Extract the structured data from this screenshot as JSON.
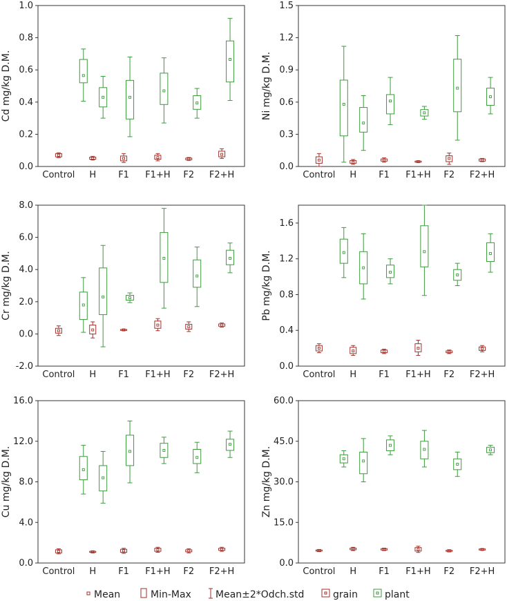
{
  "colors": {
    "grain": "#a0302a",
    "plant": "#3a9a3a",
    "axis": "#333333"
  },
  "legend": {
    "mean": "Mean",
    "minmax": "Min-Max",
    "std": "Mean±2*Odch.std",
    "grain": "grain",
    "plant": "plant"
  },
  "chart_data": [
    {
      "type": "box",
      "ylabel": "Cd mg/kg D.M.",
      "categories": [
        "Control",
        "H",
        "F1",
        "F1+H",
        "F2",
        "F2+H"
      ],
      "yticks": [
        "0.0",
        "0.2",
        "0.4",
        "0.6",
        "0.8",
        "1.0"
      ],
      "ylim": [
        0,
        1.0
      ],
      "series": [
        {
          "name": "grain",
          "boxes": [
            {
              "mean": 0.07,
              "min": 0.06,
              "max": 0.08,
              "lo": 0.055,
              "hi": 0.085
            },
            {
              "mean": 0.05,
              "min": 0.045,
              "max": 0.058,
              "lo": 0.04,
              "hi": 0.063
            },
            {
              "mean": 0.05,
              "min": 0.035,
              "max": 0.065,
              "lo": 0.025,
              "hi": 0.08
            },
            {
              "mean": 0.055,
              "min": 0.045,
              "max": 0.07,
              "lo": 0.035,
              "hi": 0.08
            },
            {
              "mean": 0.047,
              "min": 0.042,
              "max": 0.052,
              "lo": 0.038,
              "hi": 0.056
            },
            {
              "mean": 0.075,
              "min": 0.06,
              "max": 0.095,
              "lo": 0.05,
              "hi": 0.11
            }
          ]
        },
        {
          "name": "plant",
          "boxes": [
            {
              "mean": 0.565,
              "min": 0.52,
              "max": 0.665,
              "lo": 0.405,
              "hi": 0.73
            },
            {
              "mean": 0.43,
              "min": 0.37,
              "max": 0.49,
              "lo": 0.3,
              "hi": 0.56
            },
            {
              "mean": 0.43,
              "min": 0.295,
              "max": 0.535,
              "lo": 0.185,
              "hi": 0.68
            },
            {
              "mean": 0.47,
              "min": 0.385,
              "max": 0.58,
              "lo": 0.27,
              "hi": 0.675
            },
            {
              "mean": 0.395,
              "min": 0.355,
              "max": 0.44,
              "lo": 0.3,
              "hi": 0.485
            },
            {
              "mean": 0.665,
              "min": 0.525,
              "max": 0.78,
              "lo": 0.41,
              "hi": 0.92
            }
          ]
        }
      ]
    },
    {
      "type": "box",
      "ylabel": "Ni mg/kg D.M.",
      "categories": [
        "Control",
        "H",
        "F1",
        "F1+H",
        "F2",
        "F2+H"
      ],
      "yticks": [
        "0.0",
        "0.3",
        "0.6",
        "0.9",
        "1.2",
        "1.5"
      ],
      "ylim": [
        0,
        1.5
      ],
      "series": [
        {
          "name": "grain",
          "boxes": [
            {
              "mean": 0.06,
              "min": 0.03,
              "max": 0.09,
              "lo": 0.0,
              "hi": 0.12
            },
            {
              "mean": 0.04,
              "min": 0.03,
              "max": 0.055,
              "lo": 0.02,
              "hi": 0.065
            },
            {
              "mean": 0.06,
              "min": 0.05,
              "max": 0.07,
              "lo": 0.04,
              "hi": 0.08
            },
            {
              "mean": 0.045,
              "min": 0.04,
              "max": 0.05,
              "lo": 0.037,
              "hi": 0.053
            },
            {
              "mean": 0.075,
              "min": 0.045,
              "max": 0.1,
              "lo": 0.02,
              "hi": 0.125
            },
            {
              "mean": 0.06,
              "min": 0.05,
              "max": 0.07,
              "lo": 0.045,
              "hi": 0.075
            }
          ]
        },
        {
          "name": "plant",
          "boxes": [
            {
              "mean": 0.58,
              "min": 0.285,
              "max": 0.805,
              "lo": 0.04,
              "hi": 1.12
            },
            {
              "mean": 0.405,
              "min": 0.32,
              "max": 0.55,
              "lo": 0.15,
              "hi": 0.66
            },
            {
              "mean": 0.61,
              "min": 0.49,
              "max": 0.67,
              "lo": 0.39,
              "hi": 0.83
            },
            {
              "mean": 0.5,
              "min": 0.47,
              "max": 0.53,
              "lo": 0.44,
              "hi": 0.56
            },
            {
              "mean": 0.73,
              "min": 0.51,
              "max": 1.0,
              "lo": 0.245,
              "hi": 1.22
            },
            {
              "mean": 0.65,
              "min": 0.57,
              "max": 0.73,
              "lo": 0.49,
              "hi": 0.83
            }
          ]
        }
      ]
    },
    {
      "type": "box",
      "ylabel": "Cr mg/kg D.M.",
      "categories": [
        "Control",
        "H",
        "F1",
        "F1+H",
        "F2",
        "F2+H"
      ],
      "yticks": [
        "-2.0",
        "0.0",
        "2.0",
        "4.0",
        "6.0",
        "8.0"
      ],
      "ylim": [
        -2,
        8
      ],
      "series": [
        {
          "name": "grain",
          "boxes": [
            {
              "mean": 0.2,
              "min": 0.05,
              "max": 0.35,
              "lo": -0.1,
              "hi": 0.5
            },
            {
              "mean": 0.25,
              "min": 0.0,
              "max": 0.55,
              "lo": -0.25,
              "hi": 0.75
            },
            {
              "mean": 0.25,
              "min": 0.22,
              "max": 0.28,
              "lo": 0.2,
              "hi": 0.3
            },
            {
              "mean": 0.55,
              "min": 0.35,
              "max": 0.8,
              "lo": 0.2,
              "hi": 0.95
            },
            {
              "mean": 0.45,
              "min": 0.3,
              "max": 0.6,
              "lo": 0.15,
              "hi": 0.75
            },
            {
              "mean": 0.55,
              "min": 0.48,
              "max": 0.62,
              "lo": 0.42,
              "hi": 0.68
            }
          ]
        },
        {
          "name": "plant",
          "boxes": [
            {
              "mean": 1.8,
              "min": 0.9,
              "max": 2.6,
              "lo": 0.1,
              "hi": 3.5
            },
            {
              "mean": 2.3,
              "min": 1.2,
              "max": 4.1,
              "lo": -0.8,
              "hi": 5.5
            },
            {
              "mean": 2.25,
              "min": 2.1,
              "max": 2.4,
              "lo": 1.95,
              "hi": 2.55
            },
            {
              "mean": 4.7,
              "min": 3.2,
              "max": 6.3,
              "lo": 1.6,
              "hi": 7.8
            },
            {
              "mean": 3.6,
              "min": 2.9,
              "max": 4.6,
              "lo": 1.7,
              "hi": 5.4
            },
            {
              "mean": 4.7,
              "min": 4.3,
              "max": 5.2,
              "lo": 3.8,
              "hi": 5.65
            }
          ]
        }
      ]
    },
    {
      "type": "box",
      "ylabel": "Pb mg/kg D.M.",
      "categories": [
        "Control",
        "H",
        "F1",
        "F1+H",
        "F2",
        "F2+H"
      ],
      "yticks": [
        "0.0",
        "0.4",
        "0.8",
        "1.2",
        "1.6"
      ],
      "ylim": [
        0,
        1.8
      ],
      "series": [
        {
          "name": "grain",
          "boxes": [
            {
              "mean": 0.2,
              "min": 0.17,
              "max": 0.23,
              "lo": 0.15,
              "hi": 0.25
            },
            {
              "mean": 0.17,
              "min": 0.14,
              "max": 0.21,
              "lo": 0.12,
              "hi": 0.23
            },
            {
              "mean": 0.165,
              "min": 0.15,
              "max": 0.18,
              "lo": 0.14,
              "hi": 0.19
            },
            {
              "mean": 0.2,
              "min": 0.16,
              "max": 0.25,
              "lo": 0.12,
              "hi": 0.29
            },
            {
              "mean": 0.16,
              "min": 0.15,
              "max": 0.17,
              "lo": 0.14,
              "hi": 0.18
            },
            {
              "mean": 0.195,
              "min": 0.175,
              "max": 0.215,
              "lo": 0.16,
              "hi": 0.23
            }
          ]
        },
        {
          "name": "plant",
          "boxes": [
            {
              "mean": 1.27,
              "min": 1.15,
              "max": 1.42,
              "lo": 0.99,
              "hi": 1.55
            },
            {
              "mean": 1.1,
              "min": 0.92,
              "max": 1.28,
              "lo": 0.75,
              "hi": 1.48
            },
            {
              "mean": 1.05,
              "min": 0.99,
              "max": 1.13,
              "lo": 0.92,
              "hi": 1.2
            },
            {
              "mean": 1.28,
              "min": 1.11,
              "max": 1.57,
              "lo": 0.79,
              "hi": 1.8
            },
            {
              "mean": 1.02,
              "min": 0.96,
              "max": 1.08,
              "lo": 0.9,
              "hi": 1.15
            },
            {
              "mean": 1.26,
              "min": 1.17,
              "max": 1.38,
              "lo": 1.05,
              "hi": 1.48
            }
          ]
        }
      ]
    },
    {
      "type": "box",
      "ylabel": "Cu mg/kg D.M.",
      "categories": [
        "Control",
        "H",
        "F1",
        "F1+H",
        "F2",
        "F2+H"
      ],
      "yticks": [
        "0.0",
        "4.0",
        "8.0",
        "12.0",
        "16.0"
      ],
      "ylim": [
        0,
        16
      ],
      "series": [
        {
          "name": "grain",
          "boxes": [
            {
              "mean": 1.15,
              "min": 1.0,
              "max": 1.3,
              "lo": 0.9,
              "hi": 1.4
            },
            {
              "mean": 1.1,
              "min": 1.05,
              "max": 1.15,
              "lo": 1.0,
              "hi": 1.2
            },
            {
              "mean": 1.2,
              "min": 1.05,
              "max": 1.35,
              "lo": 0.95,
              "hi": 1.45
            },
            {
              "mean": 1.3,
              "min": 1.15,
              "max": 1.45,
              "lo": 1.05,
              "hi": 1.55
            },
            {
              "mean": 1.2,
              "min": 1.1,
              "max": 1.3,
              "lo": 1.0,
              "hi": 1.4
            },
            {
              "mean": 1.35,
              "min": 1.25,
              "max": 1.45,
              "lo": 1.15,
              "hi": 1.55
            }
          ]
        },
        {
          "name": "plant",
          "boxes": [
            {
              "mean": 9.2,
              "min": 8.2,
              "max": 10.5,
              "lo": 6.8,
              "hi": 11.6
            },
            {
              "mean": 8.4,
              "min": 7.1,
              "max": 9.6,
              "lo": 5.9,
              "hi": 11.0
            },
            {
              "mean": 11.0,
              "min": 9.6,
              "max": 12.6,
              "lo": 7.9,
              "hi": 14.0
            },
            {
              "mean": 11.1,
              "min": 10.4,
              "max": 11.8,
              "lo": 9.8,
              "hi": 12.4
            },
            {
              "mean": 10.4,
              "min": 9.8,
              "max": 11.2,
              "lo": 8.9,
              "hi": 11.9
            },
            {
              "mean": 11.7,
              "min": 11.1,
              "max": 12.2,
              "lo": 10.4,
              "hi": 13.0
            }
          ]
        }
      ]
    },
    {
      "type": "box",
      "ylabel": "Zn mg/kg D.M.",
      "categories": [
        "Control",
        "H",
        "F1",
        "F1+H",
        "F2",
        "F2+H"
      ],
      "yticks": [
        "0.0",
        "15.0",
        "30.0",
        "45.0",
        "60.0"
      ],
      "ylim": [
        0,
        60
      ],
      "series": [
        {
          "name": "grain",
          "boxes": [
            {
              "mean": 4.6,
              "min": 4.4,
              "max": 4.8,
              "lo": 4.2,
              "hi": 5.0
            },
            {
              "mean": 5.2,
              "min": 4.9,
              "max": 5.5,
              "lo": 4.6,
              "hi": 5.8
            },
            {
              "mean": 5.0,
              "min": 4.8,
              "max": 5.3,
              "lo": 4.6,
              "hi": 5.5
            },
            {
              "mean": 5.0,
              "min": 4.4,
              "max": 5.7,
              "lo": 3.9,
              "hi": 6.2
            },
            {
              "mean": 4.5,
              "min": 4.3,
              "max": 4.7,
              "lo": 4.1,
              "hi": 4.9
            },
            {
              "mean": 5.0,
              "min": 4.8,
              "max": 5.2,
              "lo": 4.7,
              "hi": 5.3
            }
          ]
        },
        {
          "name": "plant",
          "boxes": [
            {
              "mean": 38.5,
              "min": 37.0,
              "max": 40.0,
              "lo": 35.5,
              "hi": 41.5
            },
            {
              "mean": 37.7,
              "min": 33.0,
              "max": 41.0,
              "lo": 30.0,
              "hi": 46.0
            },
            {
              "mean": 43.5,
              "min": 41.5,
              "max": 45.5,
              "lo": 40.0,
              "hi": 47.0
            },
            {
              "mean": 42.0,
              "min": 38.5,
              "max": 45.0,
              "lo": 35.5,
              "hi": 49.0
            },
            {
              "mean": 36.5,
              "min": 34.5,
              "max": 38.5,
              "lo": 32.0,
              "hi": 41.0
            },
            {
              "mean": 41.8,
              "min": 40.8,
              "max": 42.8,
              "lo": 40.0,
              "hi": 43.5
            }
          ]
        }
      ]
    }
  ]
}
